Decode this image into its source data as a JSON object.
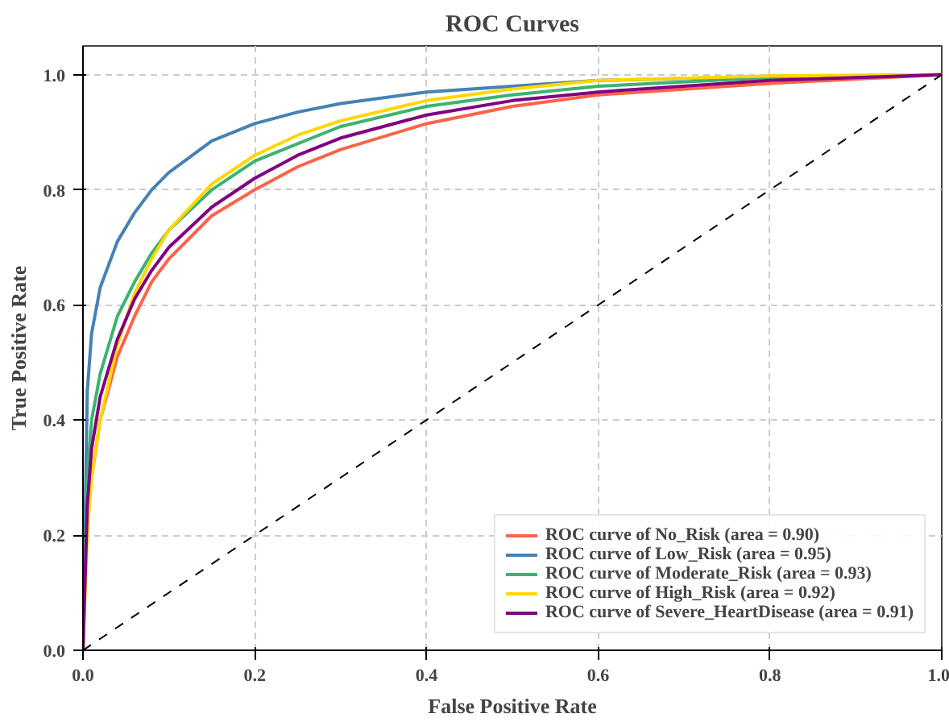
{
  "chart_data": {
    "type": "line",
    "title": "ROC Curves",
    "xlabel": "False Positive Rate",
    "ylabel": "True Positive Rate",
    "x": [
      0,
      0.005,
      0.01,
      0.02,
      0.04,
      0.06,
      0.08,
      0.1,
      0.15,
      0.2,
      0.25,
      0.3,
      0.4,
      0.5,
      0.6,
      0.8,
      1.0
    ],
    "series": [
      {
        "name": "ROC curve of No_Risk (area = 0.90)",
        "color": "#ff6347",
        "values": [
          null,
          null,
          0.3,
          0.4,
          0.51,
          0.58,
          0.64,
          0.68,
          0.755,
          0.8,
          0.84,
          0.87,
          0.915,
          0.945,
          0.965,
          0.985,
          1.0
        ]
      },
      {
        "name": "ROC curve of Low_Risk (area = 0.95)",
        "color": "#4682b4",
        "values": [
          0,
          0.45,
          0.55,
          0.63,
          0.71,
          0.76,
          0.8,
          0.83,
          0.885,
          0.915,
          0.935,
          0.95,
          0.97,
          0.98,
          0.99,
          0.997,
          1.0
        ]
      },
      {
        "name": "ROC curve of Moderate_Risk (area = 0.93)",
        "color": "#3cb371",
        "values": [
          0,
          0.3,
          0.4,
          0.48,
          0.58,
          0.64,
          0.69,
          0.73,
          0.8,
          0.85,
          0.88,
          0.91,
          0.945,
          0.965,
          0.98,
          0.995,
          1.0
        ]
      },
      {
        "name": "ROC curve of High_Risk (area = 0.92)",
        "color": "#ffd700",
        "values": [
          0,
          0.2,
          0.3,
          0.4,
          0.53,
          0.62,
          0.68,
          0.73,
          0.81,
          0.86,
          0.895,
          0.92,
          0.955,
          0.975,
          0.99,
          0.998,
          1.0
        ]
      },
      {
        "name": "ROC curve of Severe_HeartDisease (area = 0.91)",
        "color": "#800080",
        "values": [
          0,
          0.25,
          0.35,
          0.44,
          0.54,
          0.61,
          0.66,
          0.7,
          0.77,
          0.82,
          0.86,
          0.89,
          0.93,
          0.955,
          0.97,
          0.99,
          1.0
        ]
      },
      {
        "color": "#000000",
        "line_style": "dashed",
        "x": [
          0,
          1
        ],
        "values": [
          0,
          1
        ]
      }
    ],
    "xlim": [
      0,
      1
    ],
    "ylim": [
      0,
      1.05
    ],
    "xticks": [
      {
        "value": 0,
        "label": "0.0"
      },
      0.2,
      0.4,
      0.6,
      0.8,
      {
        "value": 1,
        "label": "1.0"
      }
    ],
    "yticks": [
      {
        "value": 0,
        "label": "0.0"
      },
      0.2,
      0.4,
      0.6,
      0.8,
      {
        "value": 1,
        "label": "1.0"
      }
    ],
    "grid": true,
    "legend": "bottom right",
    "line_style": "solid"
  }
}
